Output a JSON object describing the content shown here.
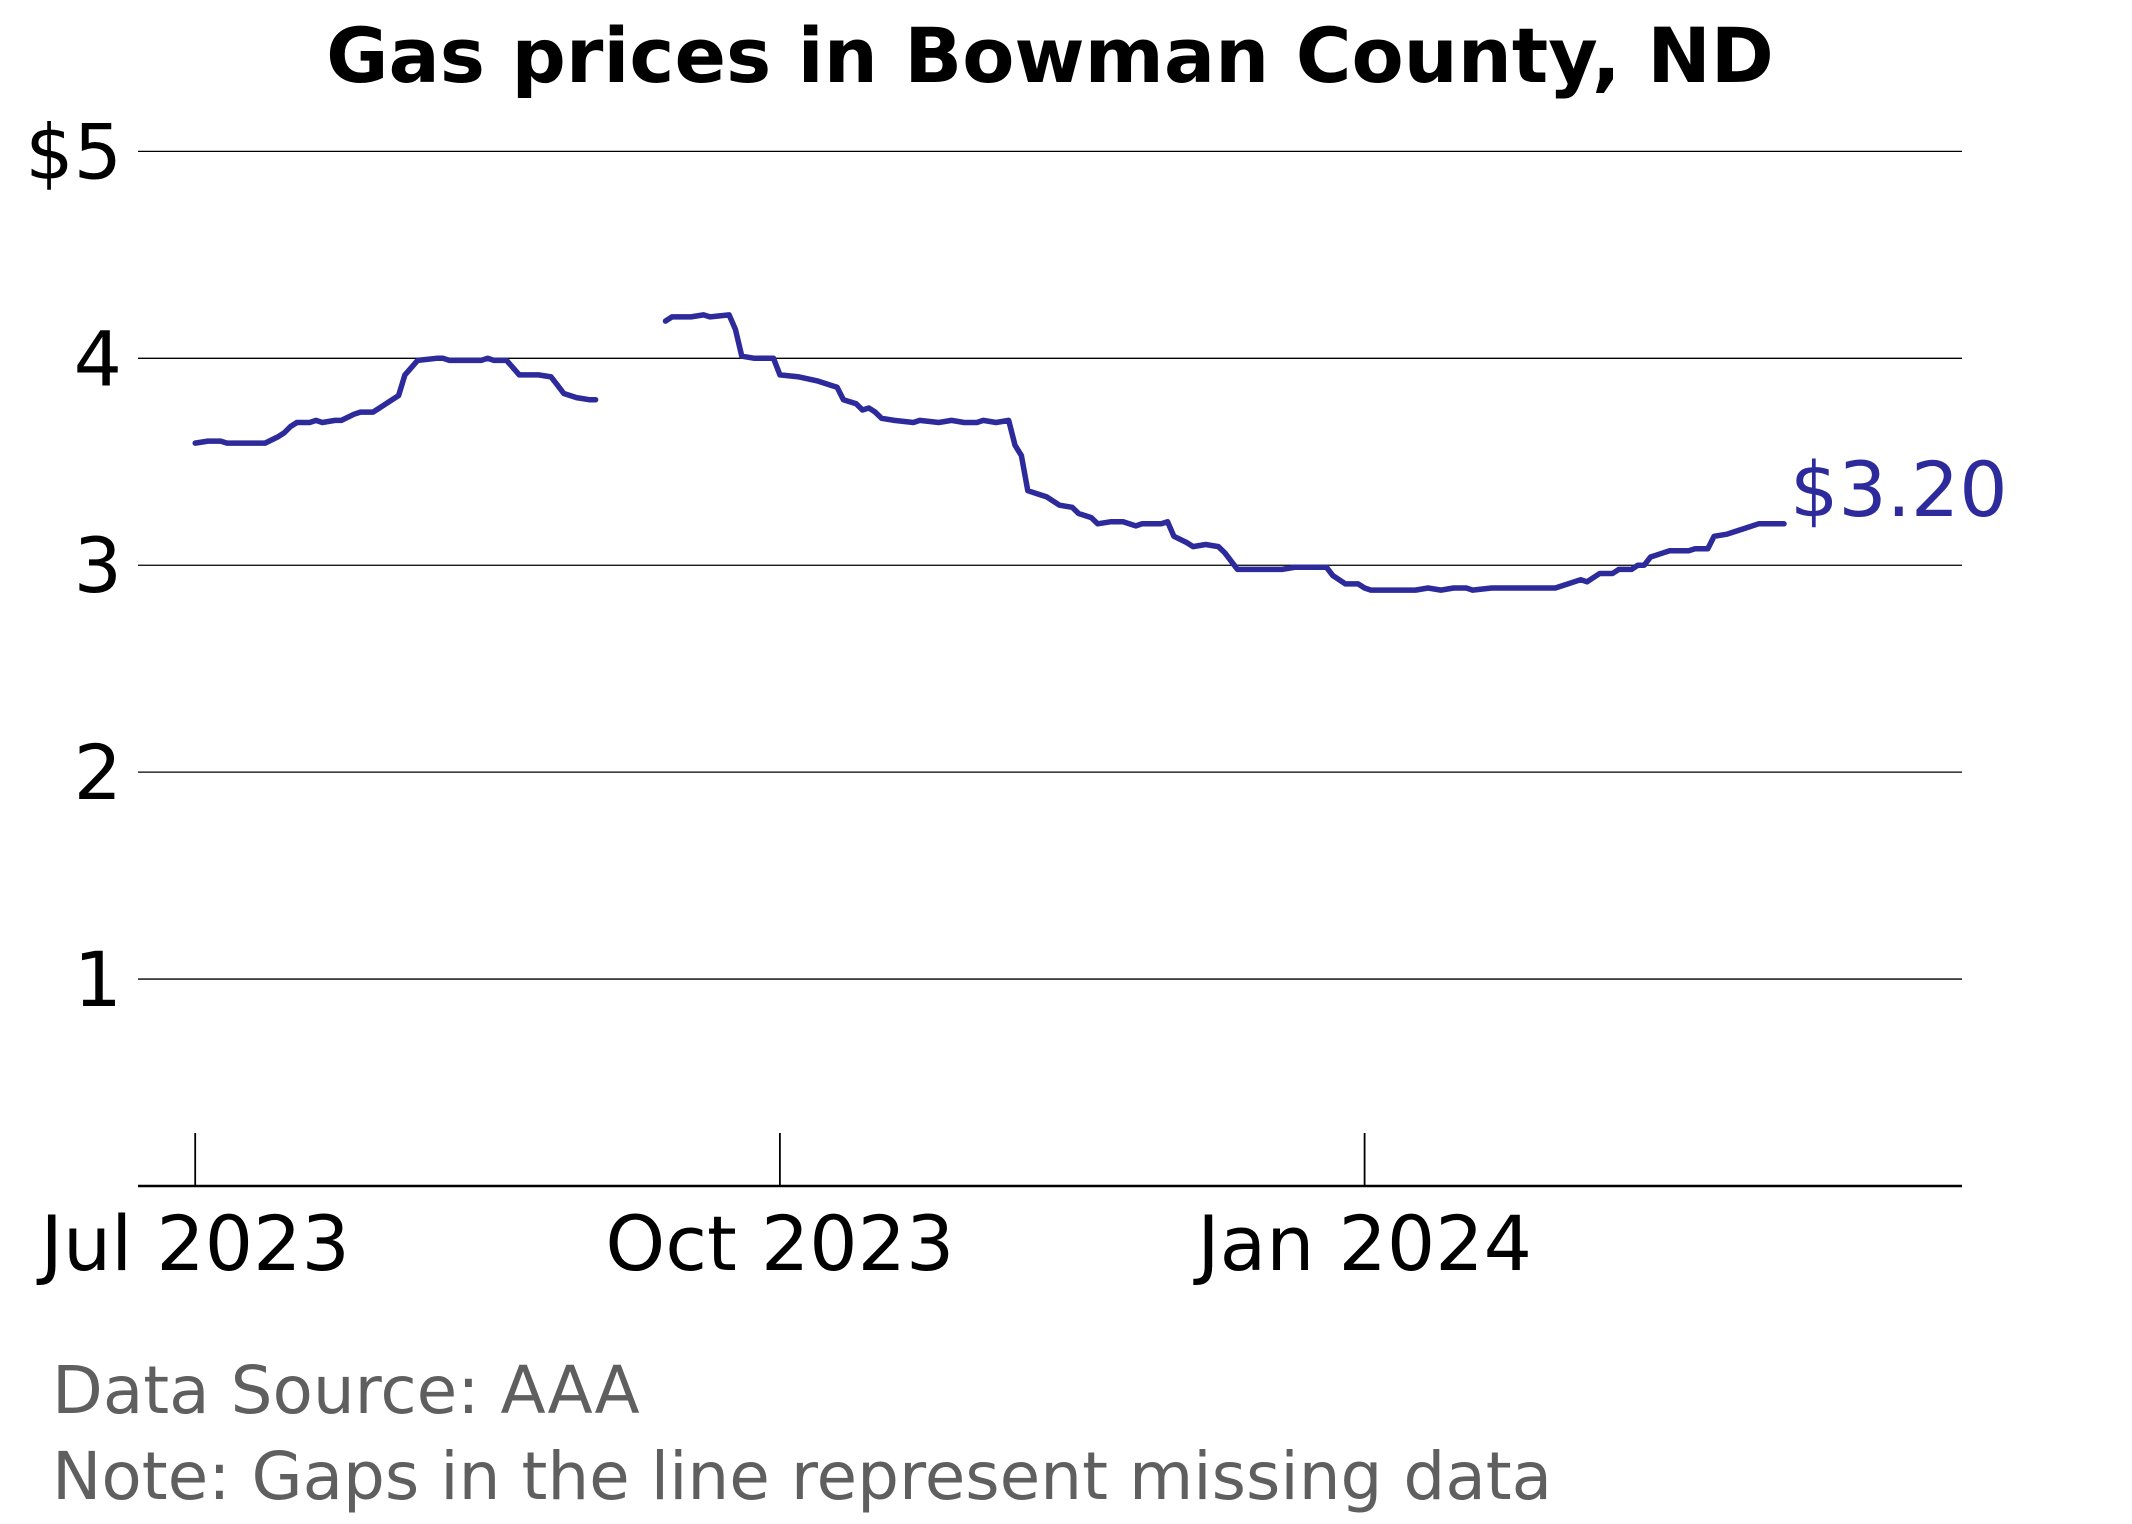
{
  "chart_data": {
    "type": "line",
    "title": "Gas prices in Bowman County, ND",
    "xlabel": "",
    "ylabel": "",
    "xlim": [
      "2023-06-22",
      "2024-04-04"
    ],
    "ylim": [
      0,
      5.2
    ],
    "grid": true,
    "x_ticks": [
      {
        "date": "2023-07-01",
        "label": "Jul 2023"
      },
      {
        "date": "2023-10-01",
        "label": "Oct 2023"
      },
      {
        "date": "2024-01-01",
        "label": "Jan 2024"
      }
    ],
    "y_ticks": [
      {
        "value": 1,
        "label": "1"
      },
      {
        "value": 2,
        "label": "2"
      },
      {
        "value": 3,
        "label": "3"
      },
      {
        "value": 4,
        "label": "4"
      },
      {
        "value": 5,
        "label": "$5"
      }
    ],
    "series": [
      {
        "color": "#2d2a9b",
        "end_label": "$3.20",
        "segments": [
          [
            [
              "2023-07-01",
              3.59
            ],
            [
              "2023-07-03",
              3.6
            ],
            [
              "2023-07-05",
              3.6
            ],
            [
              "2023-07-06",
              3.59
            ],
            [
              "2023-07-11",
              3.59
            ],
            [
              "2023-07-12",
              3.59
            ],
            [
              "2023-07-14",
              3.62
            ],
            [
              "2023-07-15",
              3.64
            ],
            [
              "2023-07-16",
              3.67
            ],
            [
              "2023-07-17",
              3.69
            ],
            [
              "2023-07-19",
              3.69
            ],
            [
              "2023-07-20",
              3.7
            ],
            [
              "2023-07-21",
              3.69
            ],
            [
              "2023-07-23",
              3.7
            ],
            [
              "2023-07-24",
              3.7
            ],
            [
              "2023-07-26",
              3.73
            ],
            [
              "2023-07-27",
              3.74
            ],
            [
              "2023-07-29",
              3.74
            ],
            [
              "2023-07-30",
              3.76
            ],
            [
              "2023-08-01",
              3.8
            ],
            [
              "2023-08-02",
              3.82
            ],
            [
              "2023-08-03",
              3.92
            ],
            [
              "2023-08-05",
              3.99
            ],
            [
              "2023-08-08",
              4.0
            ],
            [
              "2023-08-09",
              4.0
            ],
            [
              "2023-08-10",
              3.99
            ],
            [
              "2023-08-13",
              3.99
            ],
            [
              "2023-08-15",
              3.99
            ],
            [
              "2023-08-16",
              4.0
            ],
            [
              "2023-08-17",
              3.99
            ],
            [
              "2023-08-19",
              3.99
            ],
            [
              "2023-08-21",
              3.92
            ],
            [
              "2023-08-24",
              3.92
            ],
            [
              "2023-08-26",
              3.91
            ],
            [
              "2023-08-27",
              3.87
            ],
            [
              "2023-08-28",
              3.83
            ],
            [
              "2023-08-30",
              3.81
            ],
            [
              "2023-09-01",
              3.8
            ],
            [
              "2023-09-02",
              3.8
            ]
          ],
          [
            [
              "2023-09-13",
              4.18
            ],
            [
              "2023-09-14",
              4.2
            ],
            [
              "2023-09-17",
              4.2
            ],
            [
              "2023-09-19",
              4.21
            ],
            [
              "2023-09-20",
              4.2
            ],
            [
              "2023-09-23",
              4.21
            ],
            [
              "2023-09-24",
              4.14
            ],
            [
              "2023-09-25",
              4.01
            ],
            [
              "2023-09-27",
              4.0
            ],
            [
              "2023-09-30",
              4.0
            ],
            [
              "2023-10-01",
              3.92
            ],
            [
              "2023-10-04",
              3.91
            ],
            [
              "2023-10-07",
              3.89
            ],
            [
              "2023-10-09",
              3.87
            ],
            [
              "2023-10-10",
              3.86
            ],
            [
              "2023-10-11",
              3.8
            ],
            [
              "2023-10-13",
              3.78
            ],
            [
              "2023-10-14",
              3.75
            ],
            [
              "2023-10-15",
              3.76
            ],
            [
              "2023-10-16",
              3.74
            ],
            [
              "2023-10-17",
              3.71
            ],
            [
              "2023-10-19",
              3.7
            ],
            [
              "2023-10-22",
              3.69
            ],
            [
              "2023-10-23",
              3.7
            ],
            [
              "2023-10-26",
              3.69
            ],
            [
              "2023-10-28",
              3.7
            ],
            [
              "2023-10-30",
              3.69
            ],
            [
              "2023-11-01",
              3.69
            ],
            [
              "2023-11-02",
              3.7
            ],
            [
              "2023-11-04",
              3.69
            ],
            [
              "2023-11-06",
              3.7
            ],
            [
              "2023-11-07",
              3.58
            ],
            [
              "2023-11-08",
              3.53
            ],
            [
              "2023-11-09",
              3.36
            ],
            [
              "2023-11-11",
              3.34
            ],
            [
              "2023-11-12",
              3.33
            ],
            [
              "2023-11-14",
              3.29
            ],
            [
              "2023-11-16",
              3.28
            ],
            [
              "2023-11-17",
              3.25
            ],
            [
              "2023-11-19",
              3.23
            ],
            [
              "2023-11-20",
              3.2
            ],
            [
              "2023-11-22",
              3.21
            ],
            [
              "2023-11-24",
              3.21
            ],
            [
              "2023-11-26",
              3.19
            ],
            [
              "2023-11-27",
              3.2
            ],
            [
              "2023-11-30",
              3.2
            ],
            [
              "2023-12-01",
              3.21
            ],
            [
              "2023-12-02",
              3.14
            ],
            [
              "2023-12-04",
              3.11
            ],
            [
              "2023-12-05",
              3.09
            ],
            [
              "2023-12-07",
              3.1
            ],
            [
              "2023-12-09",
              3.09
            ],
            [
              "2023-12-10",
              3.06
            ],
            [
              "2023-12-12",
              2.98
            ],
            [
              "2023-12-15",
              2.98
            ],
            [
              "2023-12-19",
              2.98
            ],
            [
              "2023-12-21",
              2.99
            ],
            [
              "2023-12-26",
              2.99
            ],
            [
              "2023-12-27",
              2.95
            ],
            [
              "2023-12-29",
              2.91
            ],
            [
              "2023-12-31",
              2.91
            ],
            [
              "2024-01-01",
              2.89
            ],
            [
              "2024-01-02",
              2.88
            ],
            [
              "2024-01-09",
              2.88
            ],
            [
              "2024-01-11",
              2.89
            ],
            [
              "2024-01-13",
              2.88
            ],
            [
              "2024-01-15",
              2.89
            ],
            [
              "2024-01-17",
              2.89
            ],
            [
              "2024-01-18",
              2.88
            ],
            [
              "2024-01-21",
              2.89
            ],
            [
              "2024-01-26",
              2.89
            ],
            [
              "2024-01-31",
              2.89
            ],
            [
              "2024-02-02",
              2.91
            ],
            [
              "2024-02-04",
              2.93
            ],
            [
              "2024-02-05",
              2.92
            ],
            [
              "2024-02-07",
              2.96
            ],
            [
              "2024-02-09",
              2.96
            ],
            [
              "2024-02-10",
              2.98
            ],
            [
              "2024-02-12",
              2.98
            ],
            [
              "2024-02-13",
              3.0
            ],
            [
              "2024-02-14",
              3.0
            ],
            [
              "2024-02-15",
              3.04
            ],
            [
              "2024-02-17",
              3.06
            ],
            [
              "2024-02-18",
              3.07
            ],
            [
              "2024-02-21",
              3.07
            ],
            [
              "2024-02-22",
              3.08
            ],
            [
              "2024-02-24",
              3.08
            ],
            [
              "2024-02-25",
              3.14
            ],
            [
              "2024-02-27",
              3.15
            ],
            [
              "2024-02-28",
              3.16
            ],
            [
              "2024-03-01",
              3.18
            ],
            [
              "2024-03-03",
              3.2
            ],
            [
              "2024-03-07",
              3.2
            ]
          ]
        ]
      }
    ]
  },
  "footer": {
    "source": "Data Source: AAA",
    "note": "Note: Gaps in the line represent missing data"
  }
}
